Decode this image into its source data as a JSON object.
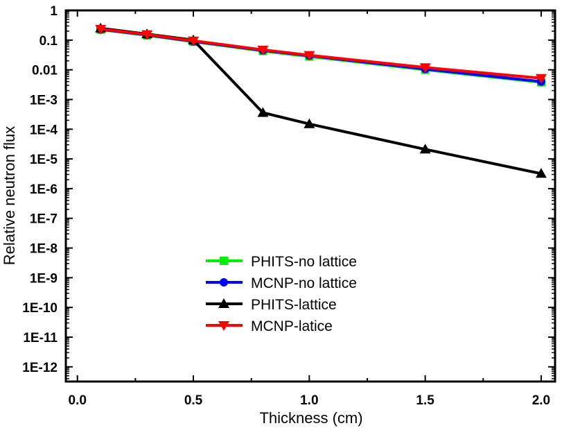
{
  "chart_data": {
    "type": "line",
    "title": "",
    "xlabel": "Thickness (cm)",
    "ylabel": "Relative neutron flux",
    "xlim": [
      -0.05,
      2.06
    ],
    "ylim": [
      3.2e-13,
      1
    ],
    "yscale": "log",
    "grid": false,
    "legend_position": "center-left",
    "x_ticks": [
      0.0,
      0.5,
      1.0,
      1.5,
      2.0
    ],
    "x_tick_labels": [
      "0.0",
      "0.5",
      "1.0",
      "1.5",
      "2.0"
    ],
    "y_ticks": [
      1,
      0.1,
      0.01,
      0.001,
      0.0001,
      1e-05,
      1e-06,
      1e-07,
      1e-08,
      1e-09,
      1e-10,
      1e-11,
      1e-12
    ],
    "y_tick_labels": [
      "1",
      "0.1",
      "0.01",
      "1E-3",
      "1E-4",
      "1E-5",
      "1E-6",
      "1E-7",
      "1E-8",
      "1E-9",
      "1E-10",
      "1E-11",
      "1E-12"
    ],
    "x": [
      0.1,
      0.3,
      0.5,
      0.8,
      1.0,
      1.5,
      2.0
    ],
    "series": [
      {
        "name": "PHITS-no lattice",
        "color": "#00ee00",
        "marker": "square",
        "values": [
          0.225,
          0.145,
          0.088,
          0.043,
          0.028,
          0.01,
          0.0038
        ]
      },
      {
        "name": "MCNP-no lattice",
        "color": "#0000ff",
        "marker": "circle",
        "values": [
          0.23,
          0.15,
          0.091,
          0.045,
          0.03,
          0.0106,
          0.004
        ]
      },
      {
        "name": "PHITS-lattice",
        "color": "#000000",
        "marker": "triangle-up",
        "values": [
          0.25,
          0.16,
          0.1,
          0.00036,
          0.00015,
          2.1e-05,
          3.2e-06
        ]
      },
      {
        "name": "MCNP-latice",
        "color": "#ff0000",
        "marker": "triangle-down",
        "values": [
          0.235,
          0.155,
          0.095,
          0.047,
          0.031,
          0.012,
          0.0052
        ]
      }
    ]
  }
}
